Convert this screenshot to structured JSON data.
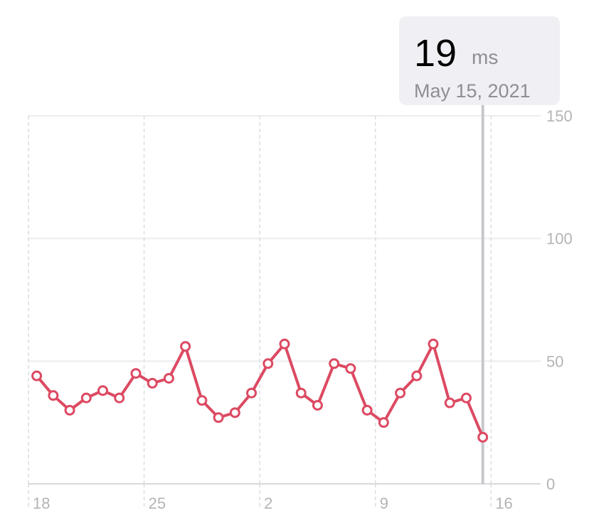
{
  "chart_data": {
    "type": "line",
    "tooltip": {
      "unit": "ms",
      "date": "May 15, 2021"
    },
    "x": [
      0.5,
      1.5,
      2.5,
      3.5,
      4.5,
      5.5,
      6.5,
      7.5,
      8.5,
      9.5,
      10.5,
      11.5,
      12.5,
      13.5,
      14.5,
      15.5,
      16.5,
      17.5,
      18.5,
      19.5,
      20.5,
      21.5,
      22.5,
      23.5,
      24.5,
      25.5,
      26.5,
      27.5
    ],
    "series": [
      {
        "color": "#dc4a62",
        "values": [
          44,
          36,
          30,
          35,
          38,
          35,
          45,
          41,
          43,
          56,
          34,
          27,
          29,
          37,
          49,
          57,
          37,
          32,
          49,
          47,
          30,
          25,
          37,
          44,
          57,
          33,
          35,
          19
        ]
      }
    ],
    "xlim": [
      0,
      31
    ],
    "xticks": [
      {
        "value": 0,
        "label": "18"
      },
      {
        "value": 7,
        "label": "25"
      },
      {
        "value": 14,
        "label": "2"
      },
      {
        "value": 21,
        "label": "9"
      },
      {
        "value": 28,
        "label": "16"
      }
    ],
    "ylim": [
      0,
      150
    ],
    "yticks": [
      0,
      50,
      100,
      150
    ],
    "grid": true
  }
}
